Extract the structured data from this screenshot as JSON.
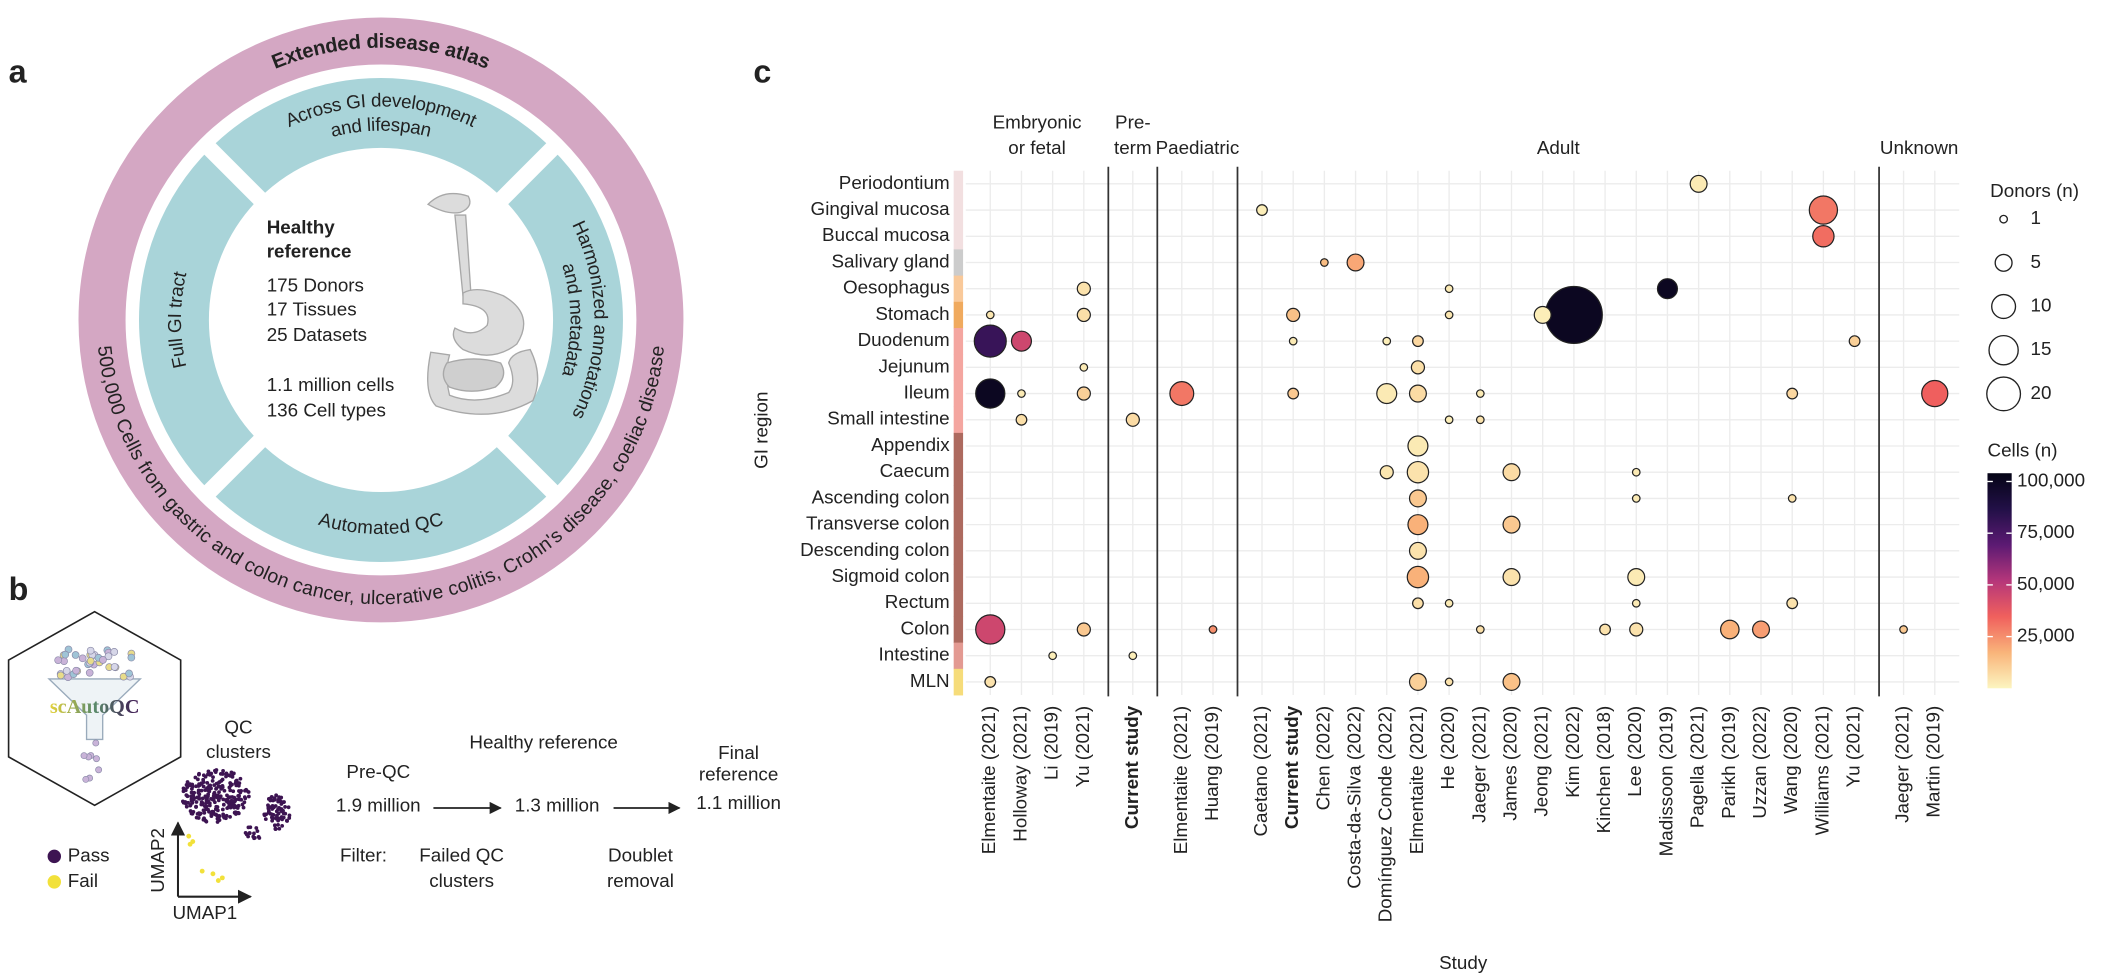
{
  "panel_a": {
    "letter": "a",
    "outer_top": "Extended disease atlas",
    "outer_bottom": "500,000 Cells from gastric and colon cancer, ulcerative colitis, Crohn's disease, coeliac disease",
    "segment_top": [
      "Across GI development",
      "and lifespan"
    ],
    "segment_right": [
      "Harmonized annotations",
      "and metadata"
    ],
    "segment_bottom": "Automated QC",
    "segment_left": "Full GI tract",
    "center_title": [
      "Healthy",
      "reference"
    ],
    "center_stats": [
      "175 Donors",
      "17 Tissues",
      "25 Datasets"
    ],
    "center_cells": [
      "1.1 million cells",
      "136 Cell types"
    ]
  },
  "panel_b": {
    "letter": "b",
    "logo": "scAutoQC",
    "umap_title": [
      "QC",
      "clusters"
    ],
    "umap_x": "UMAP1",
    "umap_y": "UMAP2",
    "legend": [
      "Pass",
      "Fail"
    ],
    "legend_colors": [
      "#3d1452",
      "#f2e13a"
    ],
    "steps": [
      {
        "label": [
          "Pre-QC"
        ],
        "count": "1.9 million"
      },
      {
        "label": [
          "Healthy reference"
        ],
        "count": "1.3 million"
      },
      {
        "label": [
          "Final",
          "reference"
        ],
        "count": "1.1 million"
      }
    ],
    "filter_label": "Filter:",
    "filters": [
      [
        "Failed QC",
        "clusters"
      ],
      [
        "Doublet",
        "removal"
      ]
    ]
  },
  "chart_data": {
    "type": "scatter",
    "letter": "c",
    "x_label": "Study",
    "y_label": "GI region",
    "highlight": "Current study",
    "groups": [
      {
        "name": [
          "Embryonic",
          "or fetal"
        ],
        "studies": [
          "Elmentaite (2021)",
          "Holloway (2021)",
          "Li (2019)",
          "Yu (2021)"
        ]
      },
      {
        "name": [
          "Pre-",
          "term"
        ],
        "studies": [
          "Current study"
        ]
      },
      {
        "name": [
          "Paediatric"
        ],
        "studies": [
          "Elmentaite (2021)",
          "Huang (2019)"
        ]
      },
      {
        "name": [
          "Adult"
        ],
        "studies": [
          "Caetano (2021)",
          "Current study",
          "Chen (2022)",
          "Costa-da-Silva (2022)",
          "Domínguez Conde (2022)",
          "Elmentaite (2021)",
          "He (2020)",
          "Jaeger (2021)",
          "James (2020)",
          "Jeong (2021)",
          "Kim (2022)",
          "Kinchen (2018)",
          "Lee (2020)",
          "Madissoon (2019)",
          "Pagella (2021)",
          "Parikh (2019)",
          "Uzzan (2022)",
          "Wang (2020)",
          "Williams (2021)",
          "Yu (2021)"
        ]
      },
      {
        "name": [
          "Unknown"
        ],
        "studies": [
          "Jaeger (2021)",
          "Martin (2019)"
        ]
      }
    ],
    "regions": [
      "Periodontium",
      "Gingival mucosa",
      "Buccal mucosa",
      "Salivary gland",
      "Oesophagus",
      "Stomach",
      "Duodenum",
      "Jejunum",
      "Ileum",
      "Small intestine",
      "Appendix",
      "Caecum",
      "Ascending colon",
      "Transverse colon",
      "Descending colon",
      "Sigmoid colon",
      "Rectum",
      "Colon",
      "Intestine",
      "MLN"
    ],
    "region_colors": [
      "#f2dfe0",
      "#f2dfe0",
      "#f2dfe0",
      "#cccccc",
      "#f9c99a",
      "#f0aa5e",
      "#f4a6a0",
      "#f4a6a0",
      "#f4a6a0",
      "#f4a6a0",
      "#ad6a5f",
      "#ad6a5f",
      "#ad6a5f",
      "#ad6a5f",
      "#ad6a5f",
      "#ad6a5f",
      "#ad6a5f",
      "#ad6a5f",
      "#e39a92",
      "#f6dc7a"
    ],
    "points": {
      "group": [
        3,
        3,
        3,
        3,
        3,
        3,
        0,
        3,
        3,
        0,
        0,
        3,
        3,
        3,
        3,
        0,
        0,
        3,
        3,
        3,
        3,
        0,
        3,
        0,
        0,
        0,
        2,
        3,
        3,
        3,
        3,
        3,
        4,
        0,
        1,
        3,
        3,
        3,
        3,
        3,
        3,
        3,
        3,
        3,
        3,
        3,
        3,
        3,
        3,
        3,
        3,
        3,
        3,
        3,
        3,
        0,
        0,
        2,
        3,
        3,
        3,
        3,
        3,
        4,
        0,
        1,
        0,
        3,
        3,
        3
      ],
      "study": [
        14,
        0,
        18,
        18,
        2,
        3,
        3,
        6,
        13,
        0,
        3,
        1,
        6,
        9,
        10,
        0,
        1,
        1,
        4,
        5,
        19,
        3,
        5,
        0,
        1,
        3,
        0,
        1,
        4,
        5,
        7,
        17,
        1,
        1,
        0,
        6,
        7,
        5,
        4,
        5,
        8,
        12,
        5,
        12,
        17,
        5,
        8,
        5,
        5,
        8,
        12,
        5,
        6,
        12,
        17,
        0,
        3,
        1,
        7,
        11,
        12,
        15,
        16,
        0,
        2,
        0,
        0,
        5,
        6,
        8
      ],
      "region": [
        0,
        1,
        1,
        2,
        3,
        3,
        4,
        4,
        4,
        5,
        5,
        5,
        5,
        5,
        5,
        6,
        6,
        6,
        6,
        6,
        6,
        7,
        7,
        8,
        8,
        8,
        8,
        8,
        8,
        8,
        8,
        8,
        8,
        9,
        9,
        9,
        9,
        10,
        11,
        11,
        11,
        11,
        12,
        12,
        12,
        13,
        13,
        14,
        15,
        15,
        15,
        16,
        16,
        16,
        16,
        17,
        17,
        17,
        17,
        17,
        17,
        17,
        17,
        17,
        18,
        18,
        19,
        19,
        19,
        19
      ],
      "donors": [
        5,
        2,
        14,
        8,
        1,
        5,
        3,
        1,
        7,
        1,
        3,
        3,
        1,
        5,
        57,
        18,
        7,
        1,
        1,
        2,
        2,
        1,
        3,
        15,
        1,
        3,
        10,
        2,
        7,
        5,
        1,
        2,
        12,
        2,
        3,
        1,
        1,
        7,
        3,
        8,
        5,
        1,
        5,
        1,
        1,
        7,
        5,
        5,
        8,
        5,
        5,
        2,
        1,
        1,
        2,
        15,
        3,
        1,
        1,
        2,
        3,
        6,
        5,
        1,
        1,
        1,
        2,
        5,
        1,
        5
      ],
      "cells": [
        3000,
        2000,
        30000,
        32000,
        15000,
        20000,
        5000,
        3000,
        100000,
        4000,
        6000,
        14000,
        4000,
        2000,
        100000,
        80000,
        45000,
        3000,
        2000,
        8000,
        10000,
        3000,
        6000,
        100000,
        3000,
        10000,
        30000,
        12000,
        3000,
        7000,
        3000,
        8000,
        35000,
        6000,
        7000,
        2000,
        5000,
        3000,
        4000,
        5000,
        7000,
        3000,
        12000,
        3000,
        5000,
        18000,
        12000,
        5000,
        18000,
        5000,
        3000,
        6000,
        3000,
        3000,
        5000,
        45000,
        12000,
        25000,
        6000,
        5000,
        5000,
        18000,
        22000,
        12000,
        2000,
        2000,
        5000,
        10000,
        5000,
        14000
      ]
    },
    "size_legend": {
      "title": "Donors (n)",
      "values": [
        1,
        5,
        10,
        15,
        20
      ]
    },
    "color_legend": {
      "title": "Cells (n)",
      "lim": [
        0,
        104000
      ],
      "ticks": [
        {
          "value": 25000,
          "label": "25,000"
        },
        {
          "value": 50000,
          "label": "50,000"
        },
        {
          "value": 75000,
          "label": "75,000"
        },
        {
          "value": 100000,
          "label": "100,000"
        }
      ],
      "colorscale": [
        "#fcf5c0",
        "#f9b47a",
        "#f0605d",
        "#b5367a",
        "#5c1a73",
        "#221047",
        "#050416"
      ]
    }
  }
}
